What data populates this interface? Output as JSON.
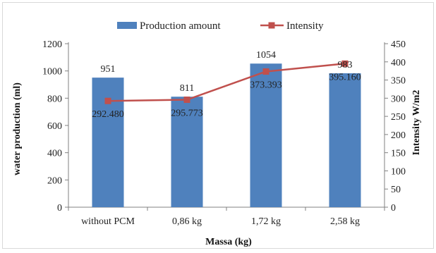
{
  "chart_data": {
    "type": "bar",
    "categories": [
      "without PCM",
      "0,86 kg",
      "1,72 kg",
      "2,58 kg"
    ],
    "xlabel": "Massa (kg)",
    "series": [
      {
        "name": "Production amount",
        "type": "bar",
        "axis": "left",
        "color": "#4f81bd",
        "values": [
          951,
          811,
          1054,
          983
        ],
        "labels": [
          "951",
          "811",
          "1054",
          "983"
        ]
      },
      {
        "name": "Intensity",
        "type": "line",
        "axis": "right",
        "color": "#c0504d",
        "values": [
          292.48,
          295.773,
          373.393,
          395.16
        ],
        "labels": [
          "292.480",
          "295.773",
          "373.393",
          "395.160"
        ]
      }
    ],
    "y_left": {
      "label": "water production (ml)",
      "range": [
        0,
        1200
      ],
      "ticks": [
        "0",
        "200",
        "400",
        "600",
        "800",
        "1000",
        "1200"
      ]
    },
    "y_right": {
      "label": "Intensity W/m2",
      "range": [
        0,
        450
      ],
      "ticks": [
        "0",
        "50",
        "100",
        "150",
        "200",
        "250",
        "300",
        "350",
        "400",
        "450"
      ]
    },
    "grid": false,
    "legend": "top-center"
  }
}
